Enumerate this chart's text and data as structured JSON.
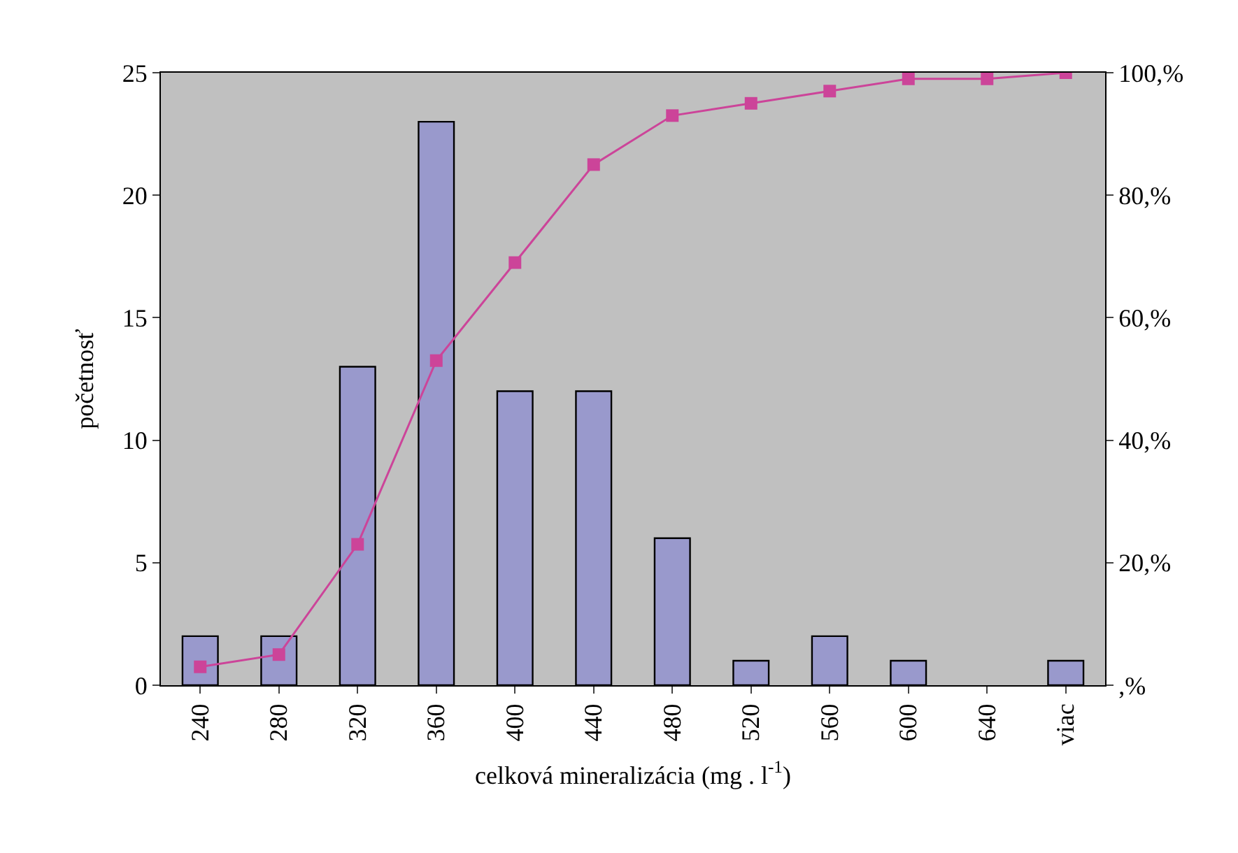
{
  "chart_data": {
    "type": "bar",
    "xlabel": "celková mineralizácia (mg . l$^{-1}$)",
    "ylabel": "početnosť",
    "categories": [
      "240",
      "280",
      "320",
      "360",
      "400",
      "440",
      "480",
      "520",
      "560",
      "600",
      "640",
      "viac"
    ],
    "series": [
      {
        "color": "#9999cc",
        "values": [
          2,
          2,
          13,
          23,
          12,
          12,
          6,
          1,
          2,
          1,
          0,
          1
        ]
      },
      {
        "type": "line",
        "axis": "y2",
        "color": "#cc4499",
        "marker": "square",
        "values": [
          3,
          5,
          23,
          53,
          69,
          85,
          93,
          95,
          97,
          99,
          99,
          100
        ]
      }
    ],
    "ylim": [
      0,
      25
    ],
    "yticks": [
      0,
      5,
      10,
      15,
      20,
      25
    ],
    "y2lim": [
      0,
      100
    ],
    "y2ticks": [
      {
        "value": 0,
        "label": ",%"
      },
      {
        "value": 20,
        "label": "20,%"
      },
      {
        "value": 40,
        "label": "40,%"
      },
      {
        "value": 60,
        "label": "60,%"
      },
      {
        "value": 80,
        "label": "80,%"
      },
      {
        "value": 100,
        "label": "100,%"
      }
    ],
    "grid": false
  }
}
